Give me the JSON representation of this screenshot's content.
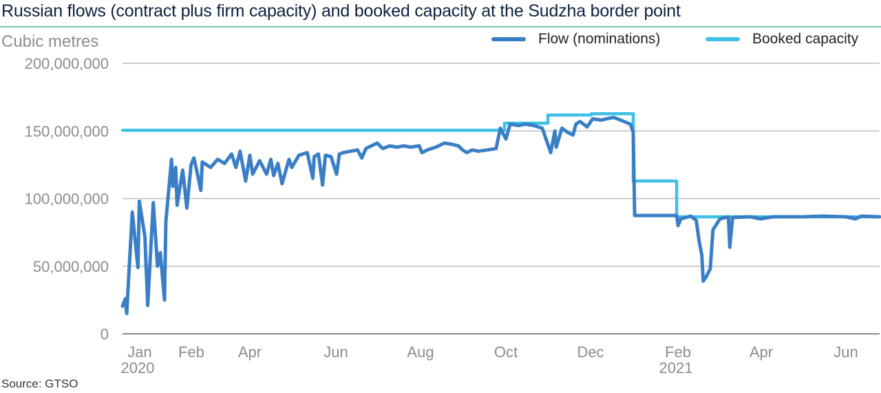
{
  "chart_data": {
    "type": "line",
    "title": "Russian flows (contract plus firm capacity) and booked capacity at the Sudzha border point",
    "ylabel": "Cubic metres",
    "source": "Source: GTSO",
    "ylim": [
      0,
      200000000
    ],
    "y_ticks": [
      "200,000,000",
      "150,000,000",
      "100,000,000",
      "50,000,000",
      "0"
    ],
    "y_tick_values": [
      200000000,
      150000000,
      100000000,
      50000000,
      0
    ],
    "x_ticks": [
      {
        "label": "Jan",
        "sub": "2020"
      },
      {
        "label": "Feb",
        "sub": ""
      },
      {
        "label": "Apr",
        "sub": ""
      },
      {
        "label": "Jun",
        "sub": ""
      },
      {
        "label": "Aug",
        "sub": ""
      },
      {
        "label": "Oct",
        "sub": ""
      },
      {
        "label": "Dec",
        "sub": ""
      },
      {
        "label": "Feb",
        "sub": "2021"
      },
      {
        "label": "Apr",
        "sub": ""
      },
      {
        "label": "Jun",
        "sub": ""
      }
    ],
    "xlim": [
      "2020-01-01",
      "2021-06-25"
    ],
    "grid": true,
    "legend_placement": "top-right",
    "series": [
      {
        "name": "Flow (nominations)",
        "color": "#3a7fc6",
        "points": [
          [
            "2020-01-01",
            20400000
          ],
          [
            "2020-01-03",
            26000000
          ],
          [
            "2020-01-04",
            15000000
          ],
          [
            "2020-01-08",
            90000000
          ],
          [
            "2020-01-12",
            49000000
          ],
          [
            "2020-01-13",
            98000000
          ],
          [
            "2020-01-17",
            72000000
          ],
          [
            "2020-01-19",
            21000000
          ],
          [
            "2020-01-23",
            97000000
          ],
          [
            "2020-01-26",
            50000000
          ],
          [
            "2020-01-28",
            60000000
          ],
          [
            "2020-01-31",
            25000000
          ],
          [
            "2020-02-01",
            83000000
          ],
          [
            "2020-02-05",
            129000000
          ],
          [
            "2020-02-06",
            109000000
          ],
          [
            "2020-02-08",
            123000000
          ],
          [
            "2020-02-09",
            95000000
          ],
          [
            "2020-02-13",
            121000000
          ],
          [
            "2020-02-16",
            93000000
          ],
          [
            "2020-02-19",
            125000000
          ],
          [
            "2020-02-21",
            130000000
          ],
          [
            "2020-02-23",
            121000000
          ],
          [
            "2020-02-26",
            106000000
          ],
          [
            "2020-02-27",
            127000000
          ],
          [
            "2020-03-04",
            123000000
          ],
          [
            "2020-03-09",
            129000000
          ],
          [
            "2020-03-14",
            126000000
          ],
          [
            "2020-03-19",
            133000000
          ],
          [
            "2020-03-22",
            123000000
          ],
          [
            "2020-03-25",
            135000000
          ],
          [
            "2020-03-29",
            113000000
          ],
          [
            "2020-04-01",
            132000000
          ],
          [
            "2020-04-03",
            118000000
          ],
          [
            "2020-04-08",
            128000000
          ],
          [
            "2020-04-13",
            118000000
          ],
          [
            "2020-04-16",
            129000000
          ],
          [
            "2020-04-18",
            117000000
          ],
          [
            "2020-04-21",
            126000000
          ],
          [
            "2020-04-24",
            111000000
          ],
          [
            "2020-04-29",
            129000000
          ],
          [
            "2020-05-01",
            123000000
          ],
          [
            "2020-05-06",
            132000000
          ],
          [
            "2020-05-12",
            134000000
          ],
          [
            "2020-05-16",
            115000000
          ],
          [
            "2020-05-17",
            131000000
          ],
          [
            "2020-05-20",
            133000000
          ],
          [
            "2020-05-23",
            110000000
          ],
          [
            "2020-05-25",
            132000000
          ],
          [
            "2020-05-29",
            131000000
          ],
          [
            "2020-06-02",
            118000000
          ],
          [
            "2020-06-04",
            133000000
          ],
          [
            "2020-06-07",
            134000000
          ],
          [
            "2020-06-12",
            135000000
          ],
          [
            "2020-06-17",
            136000000
          ],
          [
            "2020-06-20",
            130000000
          ],
          [
            "2020-06-23",
            137000000
          ],
          [
            "2020-07-01",
            141000000
          ],
          [
            "2020-07-05",
            137000000
          ],
          [
            "2020-07-10",
            139000000
          ],
          [
            "2020-07-15",
            138000000
          ],
          [
            "2020-07-20",
            139000000
          ],
          [
            "2020-07-25",
            138000000
          ],
          [
            "2020-07-31",
            139000000
          ],
          [
            "2020-08-02",
            134000000
          ],
          [
            "2020-08-06",
            136000000
          ],
          [
            "2020-08-12",
            138000000
          ],
          [
            "2020-08-18",
            141000000
          ],
          [
            "2020-08-24",
            140000000
          ],
          [
            "2020-08-28",
            139000000
          ],
          [
            "2020-08-31",
            136000000
          ],
          [
            "2020-09-03",
            134000000
          ],
          [
            "2020-09-07",
            136000000
          ],
          [
            "2020-09-11",
            135000000
          ],
          [
            "2020-09-18",
            136000000
          ],
          [
            "2020-09-24",
            137000000
          ],
          [
            "2020-09-27",
            152000000
          ],
          [
            "2020-10-01",
            144000000
          ],
          [
            "2020-10-04",
            155000000
          ],
          [
            "2020-10-10",
            154000000
          ],
          [
            "2020-10-15",
            155000000
          ],
          [
            "2020-10-21",
            154000000
          ],
          [
            "2020-10-27",
            152000000
          ],
          [
            "2020-11-02",
            134000000
          ],
          [
            "2020-11-05",
            150000000
          ],
          [
            "2020-11-06",
            138000000
          ],
          [
            "2020-11-10",
            152000000
          ],
          [
            "2020-11-14",
            149000000
          ],
          [
            "2020-11-18",
            147000000
          ],
          [
            "2020-11-20",
            155000000
          ],
          [
            "2020-11-23",
            157000000
          ],
          [
            "2020-11-28",
            153000000
          ],
          [
            "2020-12-02",
            159000000
          ],
          [
            "2020-12-08",
            158000000
          ],
          [
            "2020-12-12",
            159000000
          ],
          [
            "2020-12-17",
            160000000
          ],
          [
            "2020-12-22",
            158000000
          ],
          [
            "2020-12-29",
            155000000
          ],
          [
            "2020-12-31",
            149000000
          ],
          [
            "2021-01-01",
            87500000
          ],
          [
            "2021-01-31",
            87500000
          ],
          [
            "2021-02-01",
            80000000
          ],
          [
            "2021-02-03",
            85000000
          ],
          [
            "2021-02-10",
            87000000
          ],
          [
            "2021-02-14",
            84000000
          ],
          [
            "2021-02-16",
            69000000
          ],
          [
            "2021-02-18",
            58000000
          ],
          [
            "2021-02-19",
            39000000
          ],
          [
            "2021-02-21",
            42000000
          ],
          [
            "2021-02-24",
            48000000
          ],
          [
            "2021-02-26",
            77000000
          ],
          [
            "2021-03-03",
            85000000
          ],
          [
            "2021-03-09",
            86500000
          ],
          [
            "2021-03-10",
            64000000
          ],
          [
            "2021-03-12",
            86000000
          ],
          [
            "2021-03-25",
            86500000
          ],
          [
            "2021-04-01",
            85000000
          ],
          [
            "2021-04-10",
            86500000
          ],
          [
            "2021-05-01",
            86500000
          ],
          [
            "2021-05-15",
            87000000
          ],
          [
            "2021-06-01",
            86500000
          ],
          [
            "2021-06-08",
            85000000
          ],
          [
            "2021-06-12",
            87000000
          ],
          [
            "2021-06-25",
            86500000
          ]
        ]
      },
      {
        "name": "Booked capacity",
        "color": "#3fc0e6",
        "points": [
          [
            "2020-01-01",
            150500000
          ],
          [
            "2020-09-30",
            150500000
          ],
          [
            "2020-09-30",
            155700000
          ],
          [
            "2020-10-31",
            155700000
          ],
          [
            "2020-10-31",
            161800000
          ],
          [
            "2020-12-01",
            161800000
          ],
          [
            "2020-12-01",
            162700000
          ],
          [
            "2020-12-31",
            162700000
          ],
          [
            "2020-12-31",
            113000000
          ],
          [
            "2021-01-31",
            113000000
          ],
          [
            "2021-01-31",
            86500000
          ],
          [
            "2021-06-25",
            86500000
          ]
        ]
      }
    ]
  }
}
